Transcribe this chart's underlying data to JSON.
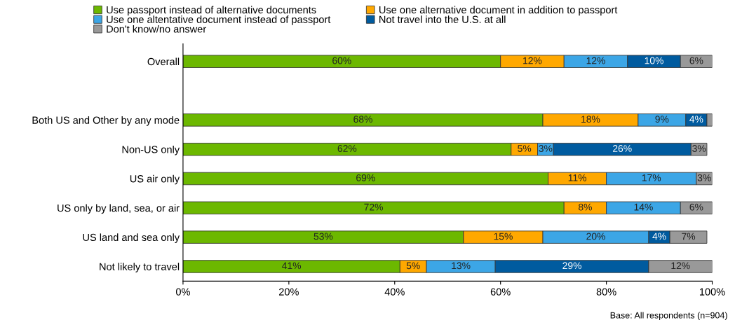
{
  "chart_data": {
    "type": "bar",
    "orientation": "horizontal",
    "stacked": true,
    "legend": "top",
    "grid": false,
    "categories": [
      "Overall",
      null,
      "Both US and Other by any mode",
      "Non-US only",
      "US air only",
      "US only by land, sea, or air",
      "US land and sea only",
      "Not likely to travel"
    ],
    "xlim": [
      0,
      100
    ],
    "xticks": [
      {
        "value": 0,
        "label": "0%"
      },
      {
        "value": 20,
        "label": "20%"
      },
      {
        "value": 40,
        "label": "40%"
      },
      {
        "value": 60,
        "label": "60%"
      },
      {
        "value": 80,
        "label": "80%"
      },
      {
        "value": 100,
        "label": "100%"
      }
    ],
    "series": [
      {
        "name": "Use passport instead of alternative documents",
        "color": "#6cb800",
        "values": [
          60,
          null,
          68,
          62,
          69,
          72,
          53,
          41
        ],
        "value_labels": [
          "60%",
          null,
          "68%",
          "62%",
          "69%",
          "72%",
          "53%",
          "41%"
        ]
      },
      {
        "name": "Use one alternative document in addition to passport",
        "color": "#ffa800",
        "values": [
          12,
          null,
          18,
          5,
          11,
          8,
          15,
          5
        ],
        "value_labels": [
          "12%",
          null,
          "18%",
          "5%",
          "11%",
          "8%",
          "15%",
          "5%"
        ]
      },
      {
        "name": "Use one altentative document instead of passport",
        "color": "#3ca6e6",
        "values": [
          12,
          null,
          9,
          3,
          17,
          14,
          20,
          13
        ],
        "value_labels": [
          "12%",
          null,
          "9%",
          "3%",
          "17%",
          "14%",
          "20%",
          "13%"
        ]
      },
      {
        "name": "Not travel into the U.S. at all",
        "color": "#005b9f",
        "values": [
          10,
          null,
          4,
          26,
          null,
          null,
          4,
          29
        ],
        "value_labels": [
          "10%",
          null,
          "4%",
          "26%",
          null,
          null,
          "4%",
          "29%"
        ]
      },
      {
        "name": "Don't know/no answer",
        "color": "#999999",
        "values": [
          6,
          null,
          1,
          3,
          3,
          6,
          7,
          12
        ],
        "value_labels": [
          "6%",
          null,
          null,
          "3%",
          "3%",
          "6%",
          "7%",
          "12%"
        ]
      }
    ],
    "annotations": [
      "Base: All respondents (n=904)"
    ]
  }
}
